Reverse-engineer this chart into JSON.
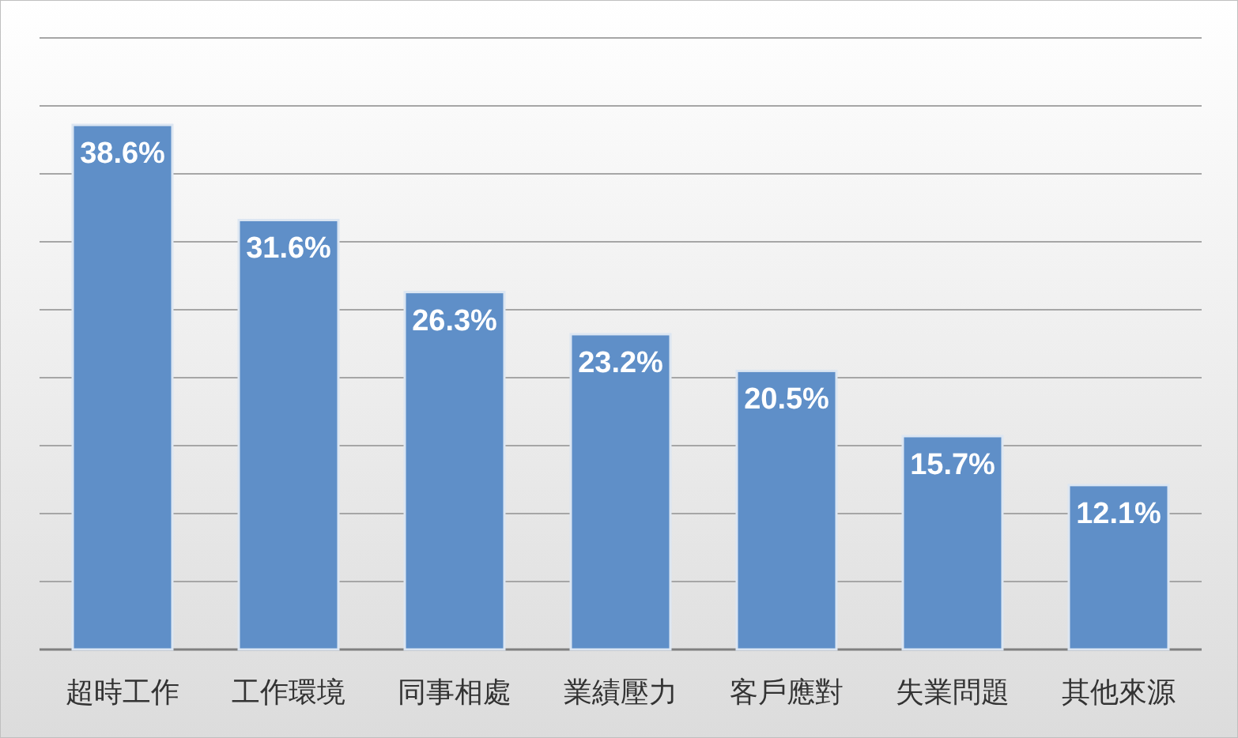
{
  "chart_data": {
    "type": "bar",
    "categories": [
      "超時工作",
      "工作環境",
      "同事相處",
      "業績壓力",
      "客戶應對",
      "失業問題",
      "其他來源"
    ],
    "values": [
      38.6,
      31.6,
      26.3,
      23.2,
      20.5,
      15.7,
      12.1
    ],
    "value_labels": [
      "38.6%",
      "31.6%",
      "26.3%",
      "23.2%",
      "20.5%",
      "15.7%",
      "12.1%"
    ],
    "color": "#5f8fc8",
    "ylim": [
      0,
      45
    ],
    "yticks": [
      0,
      5,
      10,
      15,
      20,
      25,
      30,
      35,
      40,
      45
    ],
    "grid": "y",
    "tick_labels": "x"
  }
}
